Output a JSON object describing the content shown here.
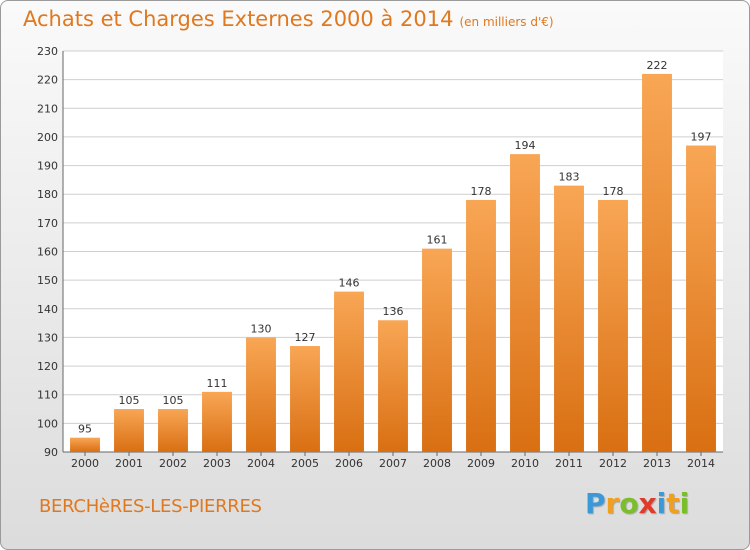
{
  "chart_data": {
    "type": "bar",
    "title": "Achats et Charges Externes 2000 à 2014",
    "subtitle": "(en milliers d'€)",
    "categories": [
      "2000",
      "2001",
      "2002",
      "2003",
      "2004",
      "2005",
      "2006",
      "2007",
      "2008",
      "2009",
      "2010",
      "2011",
      "2012",
      "2013",
      "2014"
    ],
    "values": [
      95,
      105,
      105,
      111,
      130,
      127,
      146,
      136,
      161,
      178,
      194,
      183,
      178,
      222,
      197
    ],
    "data_labels": [
      "95",
      "105",
      "105",
      "111",
      "130",
      "127",
      "146",
      "136",
      "161",
      "178",
      "194",
      "183",
      "178",
      "222",
      "197"
    ],
    "ylim": [
      90,
      230
    ],
    "yticks": [
      "90",
      "100",
      "110",
      "120",
      "130",
      "140",
      "150",
      "160",
      "170",
      "180",
      "190",
      "200",
      "210",
      "220",
      "230"
    ],
    "grid": "horizontal",
    "legend": "none",
    "bar_color_top": "#f8a655",
    "bar_color_bottom": "#d96f12"
  },
  "footer": {
    "commune": "BERCHèRES-LES-PIERRES",
    "logo": "Proxiti",
    "logo_letters": [
      {
        "ch": "P",
        "color": "#3a9ad9"
      },
      {
        "ch": "r",
        "color": "#f0a020"
      },
      {
        "ch": "o",
        "color": "#7abf2a"
      },
      {
        "ch": "x",
        "color": "#e23a2a"
      },
      {
        "ch": "i",
        "color": "#3a9ad9"
      },
      {
        "ch": "t",
        "color": "#f0a020"
      },
      {
        "ch": "i",
        "color": "#7abf2a"
      }
    ]
  },
  "colors": {
    "accent": "#e0781e",
    "grid": "#cfcfcf",
    "axis_text": "#333333"
  }
}
